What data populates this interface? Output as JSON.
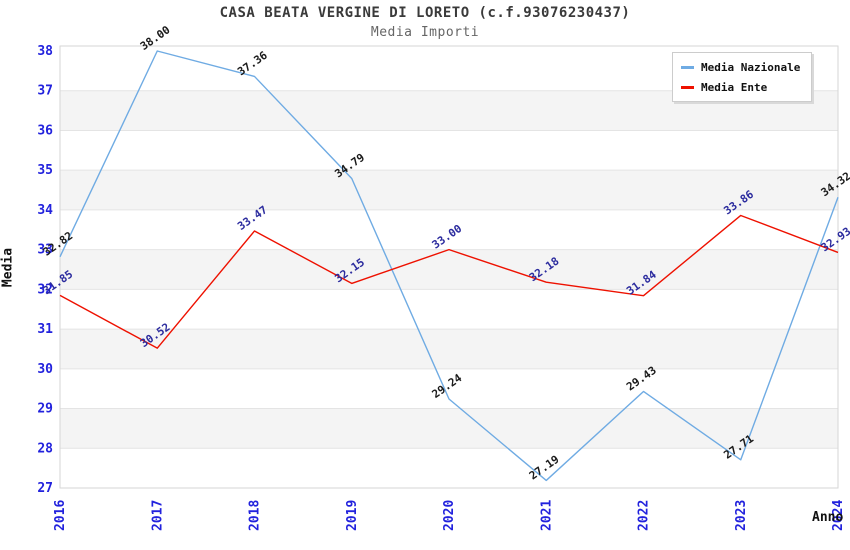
{
  "header": {
    "title": "CASA BEATA VERGINE DI LORETO (c.f.93076230437)",
    "subtitle": "Media Importi"
  },
  "colors": {
    "tick_label": "#2222dd",
    "grid_line": "#e4e4e4",
    "band_fill": "#f4f4f4",
    "plot_border": "#d6d6d6",
    "title": "#3a3a3a",
    "subtitle": "#666666",
    "axis_title": "#111111",
    "nazionale_line": "#6fabe3",
    "ente_line": "#ee1100",
    "nazionale_value_label": "#1a1a1a",
    "ente_value_label": "#2b2b9e"
  },
  "legend": {
    "position": "top-right"
  },
  "chart_data": {
    "type": "line",
    "title": "CASA BEATA VERGINE DI LORETO (c.f.93076230437)",
    "subtitle": "Media Importi",
    "xlabel": "Anno",
    "ylabel": "Media",
    "categories": [
      "2016",
      "2017",
      "2018",
      "2019",
      "2020",
      "2021",
      "2022",
      "2023",
      "2024"
    ],
    "series": [
      {
        "name": "Media Nazionale",
        "color": "#6fabe3",
        "label_color": "#1a1a1a",
        "values": [
          32.82,
          38.0,
          37.36,
          34.79,
          29.24,
          27.19,
          29.43,
          27.71,
          34.32
        ],
        "labels": [
          "32.82",
          "38.00",
          "37.36",
          "34.79",
          "29.24",
          "27.19",
          "29.43",
          "27.71",
          "34.32"
        ]
      },
      {
        "name": "Media Ente",
        "color": "#ee1100",
        "label_color": "#2b2b9e",
        "values": [
          31.85,
          30.52,
          33.47,
          32.15,
          33.0,
          32.18,
          31.84,
          33.86,
          32.93
        ],
        "labels": [
          "31.85",
          "30.52",
          "33.47",
          "32.15",
          "33.00",
          "32.18",
          "31.84",
          "33.86",
          "32.93"
        ]
      }
    ],
    "ylim": [
      27,
      38
    ],
    "ytick_step": 1,
    "grid": true,
    "alternating_bands": true,
    "legend_position": "top-right"
  }
}
